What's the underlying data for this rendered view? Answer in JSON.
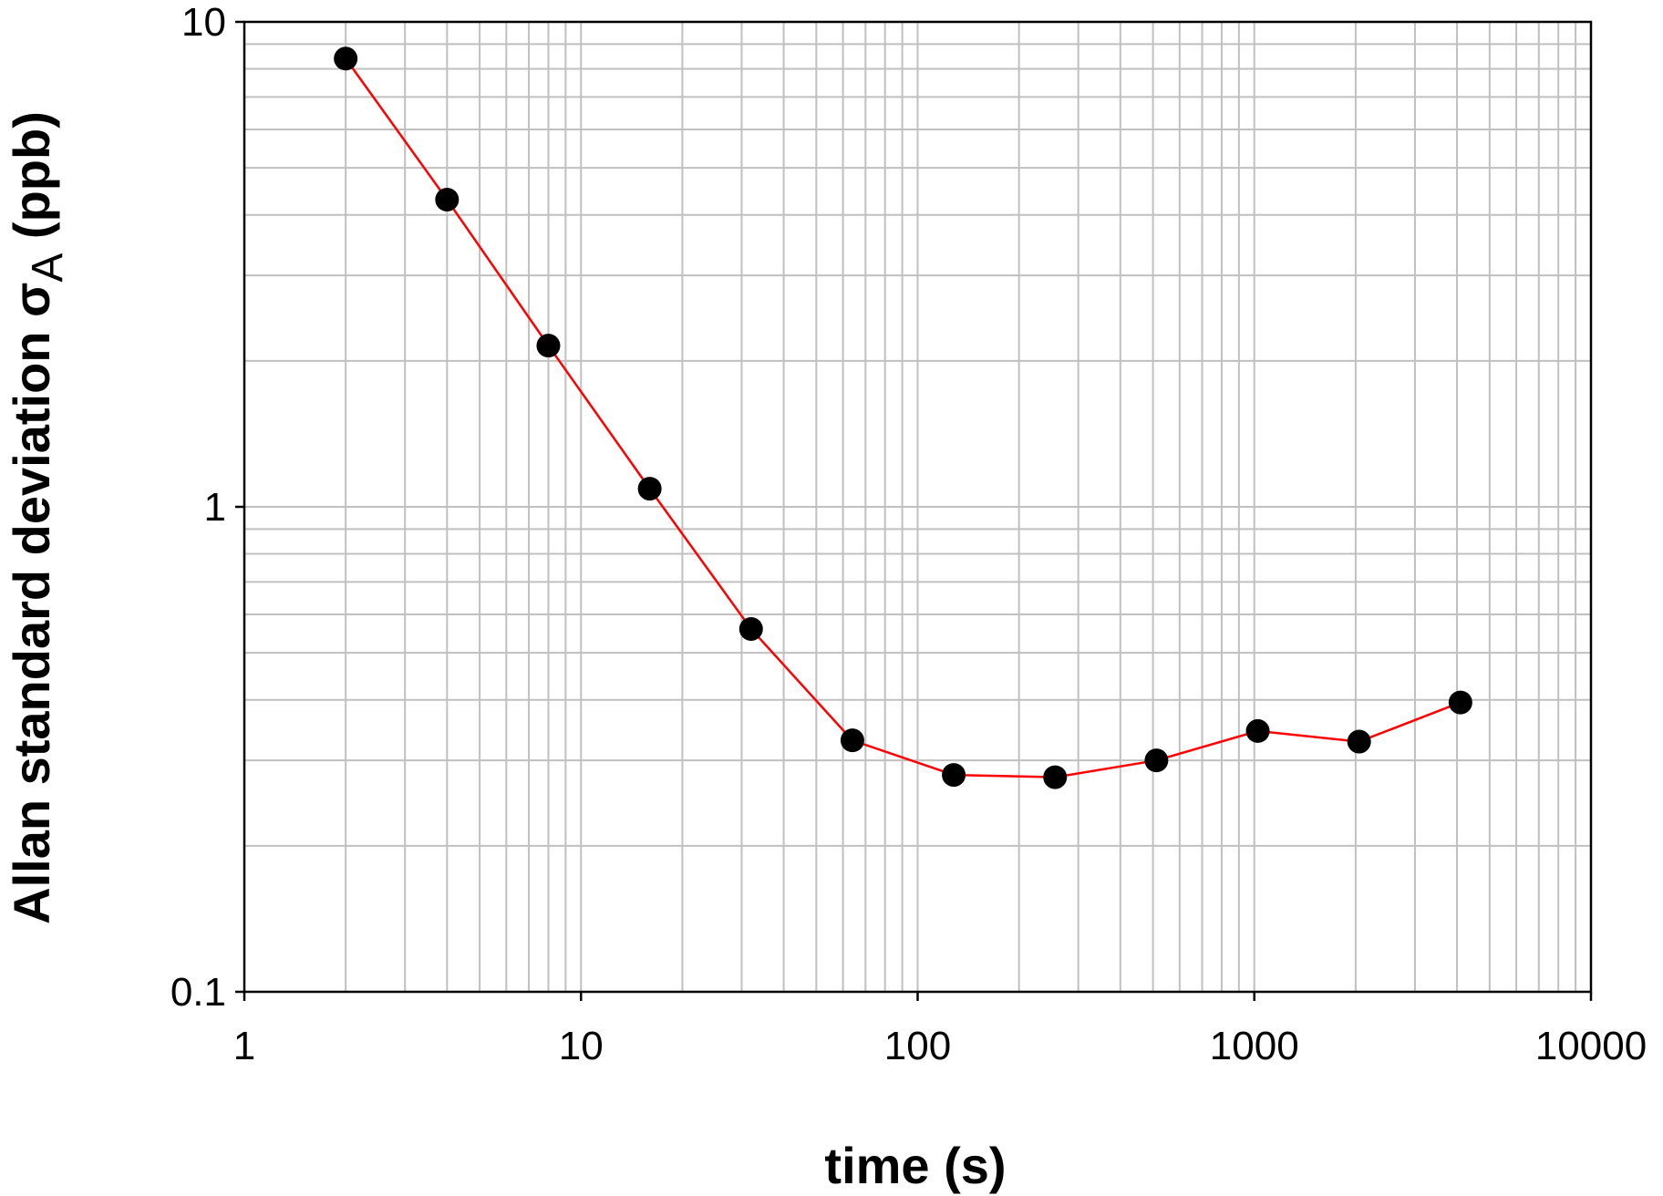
{
  "chart_data": {
    "type": "line",
    "xlabel": "time (s)",
    "ylabel": {
      "prefix": "Allan standard deviation σ",
      "subscript": "A",
      "suffix": " (ppb)"
    },
    "x_scale": "log",
    "y_scale": "log",
    "xlim": [
      1,
      10000
    ],
    "ylim": [
      0.1,
      10
    ],
    "x_ticks": [
      {
        "value": 1,
        "label": "1"
      },
      {
        "value": 10,
        "label": "10"
      },
      {
        "value": 100,
        "label": "100"
      },
      {
        "value": 1000,
        "label": "1000"
      },
      {
        "value": 10000,
        "label": "10000"
      }
    ],
    "y_ticks": [
      {
        "value": 0.1,
        "label": "0.1"
      },
      {
        "value": 1,
        "label": "1"
      },
      {
        "value": 10,
        "label": "10"
      }
    ],
    "grid": true,
    "series": [
      {
        "line_color": "#ff0000",
        "marker_color": "#000000",
        "x": [
          2,
          4,
          8,
          16,
          32,
          64,
          128,
          256,
          512,
          1024,
          2048,
          4096
        ],
        "y": [
          8.4,
          4.3,
          2.15,
          1.09,
          0.56,
          0.33,
          0.28,
          0.277,
          0.3,
          0.345,
          0.328,
          0.395
        ]
      }
    ]
  }
}
